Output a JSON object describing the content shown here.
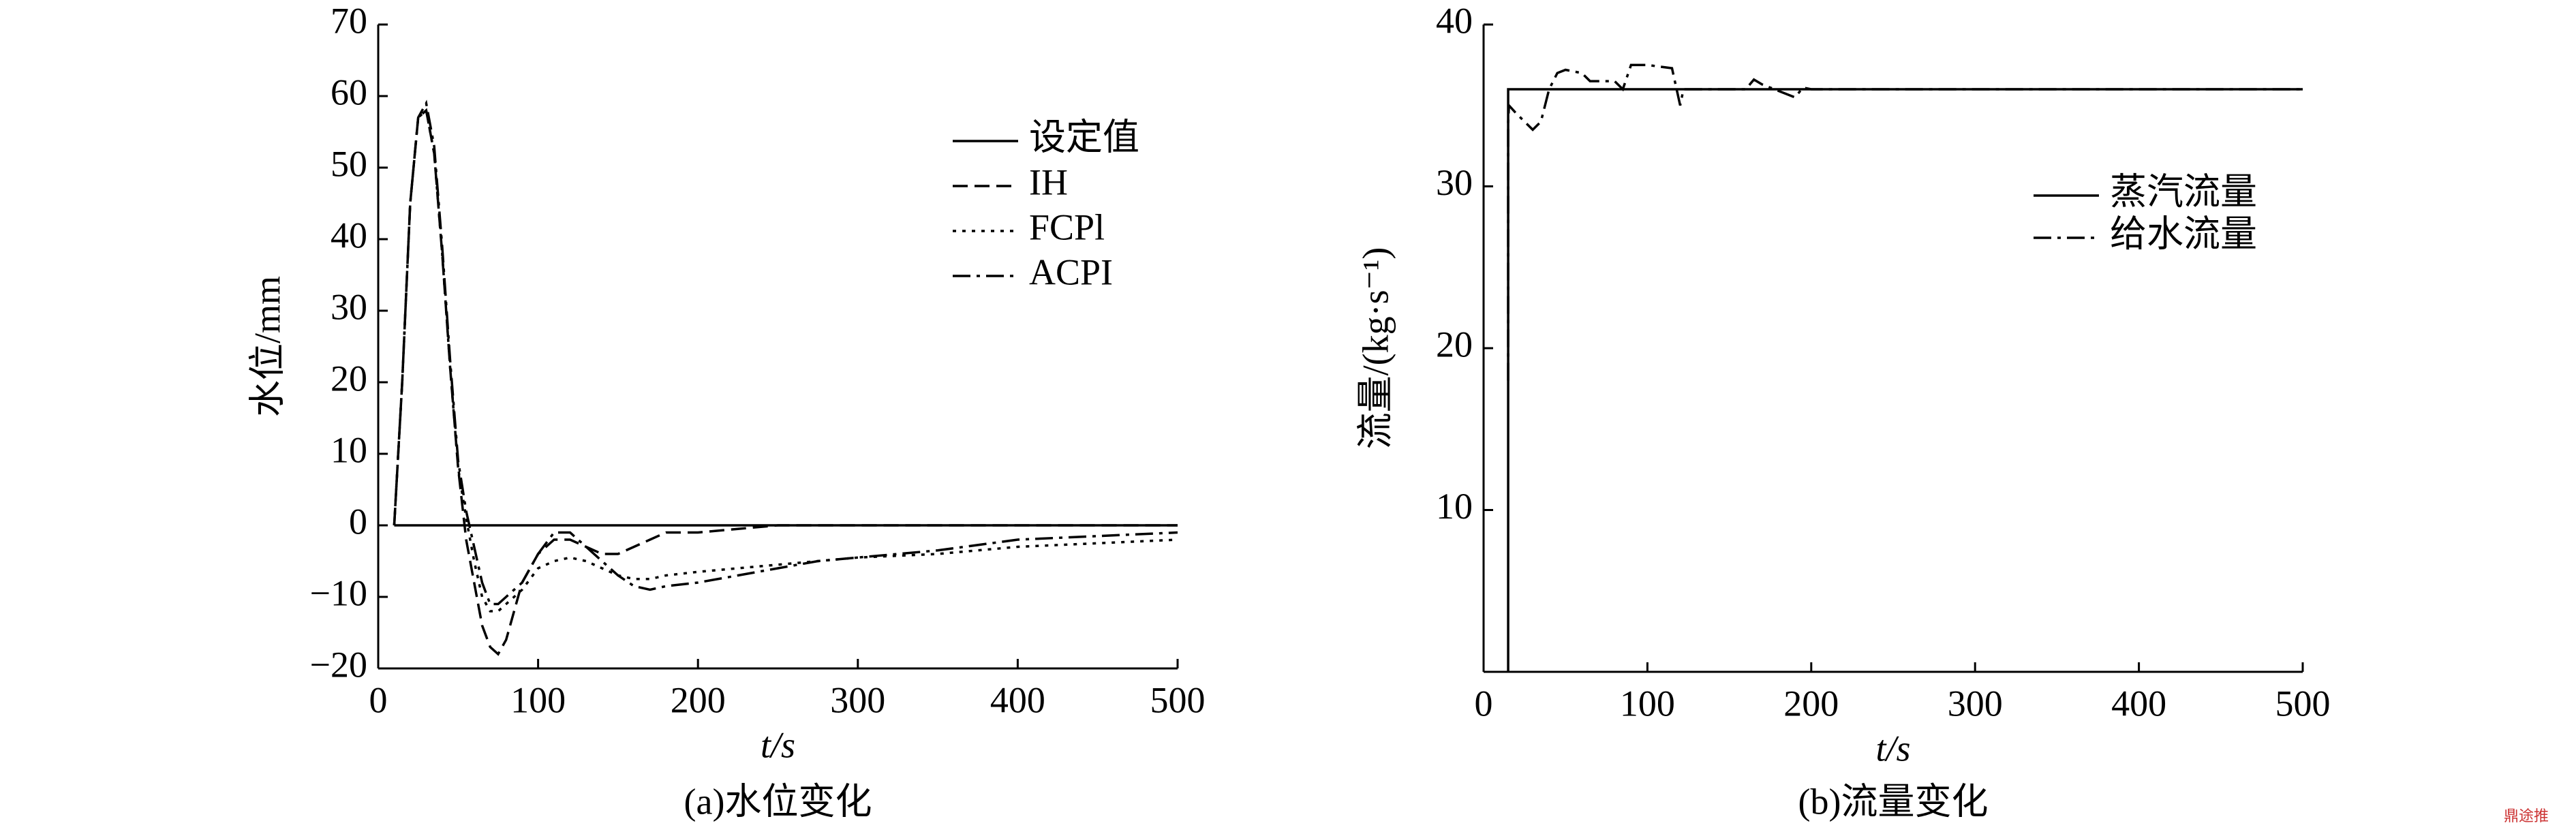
{
  "chart_data": [
    {
      "type": "line",
      "caption": "(a)水位变化",
      "x_label": "t/s",
      "y_label": "水位/mm",
      "xlim": [
        0,
        500
      ],
      "xticks": [
        0,
        100,
        200,
        300,
        400,
        500
      ],
      "ylim": [
        -20,
        70
      ],
      "yticks": [
        {
          "value": -20,
          "label": "−20"
        },
        {
          "value": -10,
          "label": "−10"
        },
        0,
        10,
        20,
        30,
        40,
        50,
        60,
        70
      ],
      "x": [
        10,
        15,
        20,
        25,
        30,
        35,
        40,
        45,
        50,
        55,
        60,
        65,
        70,
        75,
        80,
        90,
        100,
        110,
        120,
        130,
        140,
        150,
        160,
        170,
        180,
        200,
        225,
        250,
        275,
        300,
        350,
        400,
        450,
        500
      ],
      "series": [
        {
          "name": "设定值",
          "color": "#000000",
          "line_style": "solid",
          "values": [
            0,
            0,
            0,
            0,
            0,
            0,
            0,
            0,
            0,
            0,
            0,
            0,
            0,
            0,
            0,
            0,
            0,
            0,
            0,
            0,
            0,
            0,
            0,
            0,
            0,
            0,
            0,
            0,
            0,
            0,
            0,
            0,
            0,
            0
          ]
        },
        {
          "name": "IH",
          "color": "#000000",
          "line_style": "dashed",
          "values": [
            0,
            20,
            45,
            57,
            58,
            52,
            38,
            22,
            8,
            -2,
            -8,
            -14,
            -17,
            -18,
            -16,
            -8,
            -4,
            -2,
            -2,
            -3,
            -4,
            -4,
            -3,
            -2,
            -1,
            -1,
            -0.5,
            0,
            0,
            0,
            0,
            0,
            0,
            0
          ]
        },
        {
          "name": "FCPl",
          "color": "#000000",
          "line_style": "dotted",
          "values": [
            0,
            20,
            45,
            57,
            58,
            52,
            38,
            22,
            8,
            1,
            -5,
            -10,
            -12,
            -12,
            -11,
            -9,
            -6,
            -5,
            -4.5,
            -5,
            -6,
            -7,
            -7.5,
            -7.5,
            -7,
            -6.5,
            -6,
            -5.5,
            -5,
            -4.5,
            -4,
            -3,
            -2.5,
            -2
          ]
        },
        {
          "name": "ACPI",
          "color": "#000000",
          "line_style": "dashdot",
          "values": [
            0,
            20,
            45,
            57,
            59,
            53,
            39,
            23,
            9,
            2,
            -3,
            -8,
            -11,
            -11,
            -10,
            -8,
            -4,
            -1,
            -1,
            -3,
            -5,
            -7,
            -8.5,
            -9,
            -8.5,
            -8,
            -7,
            -6,
            -5,
            -4.5,
            -3.5,
            -2,
            -1.5,
            -1
          ]
        }
      ]
    },
    {
      "type": "line",
      "caption": "(b)流量变化",
      "x_label": "t/s",
      "y_label": "流量/(kg·s⁻¹)",
      "xlim": [
        0,
        500
      ],
      "xticks": [
        0,
        100,
        200,
        300,
        400,
        500
      ],
      "ylim": [
        0,
        40
      ],
      "yticks": [
        10,
        20,
        30,
        40
      ],
      "x": [
        15,
        15,
        15.5,
        20,
        25,
        30,
        35,
        40,
        45,
        50,
        60,
        65,
        80,
        85,
        90,
        100,
        115,
        120,
        122,
        130,
        160,
        165,
        170,
        190,
        195,
        200,
        250,
        500
      ],
      "series": [
        {
          "name": "蒸汽流量",
          "color": "#000000",
          "line_style": "solid",
          "values": [
            0,
            36,
            36,
            36,
            36,
            36,
            36,
            36,
            36,
            36,
            36,
            36,
            36,
            36,
            36,
            36,
            36,
            36,
            36,
            36,
            36,
            36,
            36,
            36,
            36,
            36,
            36,
            36
          ]
        },
        {
          "name": "给水流量",
          "color": "#000000",
          "line_style": "dashdot",
          "values": [
            18,
            34,
            35,
            34.5,
            34,
            33.5,
            34,
            36,
            37,
            37.2,
            37,
            36.5,
            36.5,
            36,
            37.5,
            37.5,
            37.3,
            35,
            36,
            36,
            36,
            36.6,
            36.3,
            35.5,
            36.1,
            36,
            36,
            36
          ]
        }
      ]
    }
  ],
  "watermark": "鼎途推"
}
